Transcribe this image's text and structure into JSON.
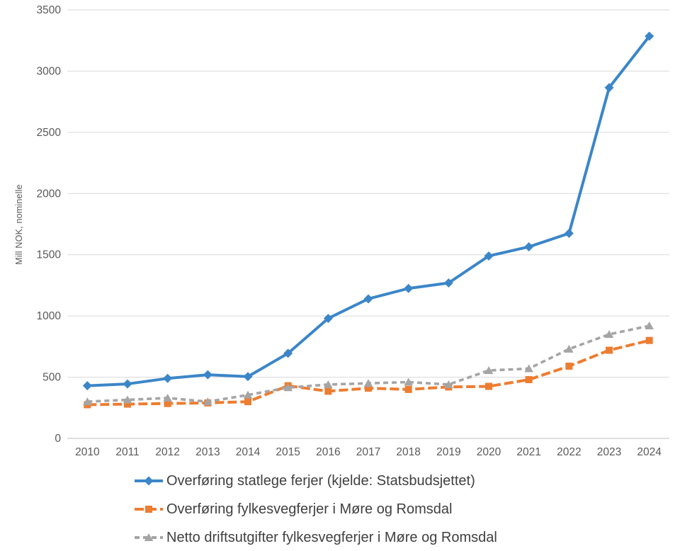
{
  "chart_data": {
    "type": "line",
    "title": "",
    "xlabel": "",
    "ylabel": "Mill NOK, nominelle",
    "ylim": [
      0,
      3500
    ],
    "y_ticks": [
      0,
      500,
      1000,
      1500,
      2000,
      2500,
      3000,
      3500
    ],
    "categories": [
      "2010",
      "2011",
      "2012",
      "2013",
      "2014",
      "2015",
      "2016",
      "2017",
      "2018",
      "2019",
      "2020",
      "2021",
      "2022",
      "2023",
      "2024"
    ],
    "grid": true,
    "legend_position": "bottom-left",
    "series": [
      {
        "name": "Overføring statlege ferjer (kjelde: Statsbudsjettet)",
        "color": "#3B86C8",
        "marker": "diamond",
        "line_style": "solid",
        "values": [
          430,
          445,
          490,
          520,
          505,
          695,
          980,
          1140,
          1225,
          1270,
          1490,
          1565,
          1675,
          2865,
          3285
        ]
      },
      {
        "name": "Overføring fylkesvegferjer i Møre og Romsdal",
        "color": "#ED7D31",
        "marker": "square",
        "line_style": "long-dash",
        "values": [
          275,
          280,
          285,
          290,
          300,
          430,
          385,
          410,
          400,
          420,
          425,
          480,
          590,
          720,
          800
        ]
      },
      {
        "name": "Netto driftsutgifter fylkesvegferjer i Møre og Romsdal",
        "color": "#A5A5A5",
        "marker": "triangle",
        "line_style": "dash",
        "values": [
          300,
          315,
          330,
          300,
          355,
          415,
          440,
          450,
          460,
          440,
          555,
          570,
          730,
          850,
          920
        ]
      }
    ],
    "colors": {
      "gridline": "#D9D9D9",
      "axis_line": "#BFBFBF",
      "tick_label": "#595959",
      "legend_text": "#404040"
    }
  }
}
